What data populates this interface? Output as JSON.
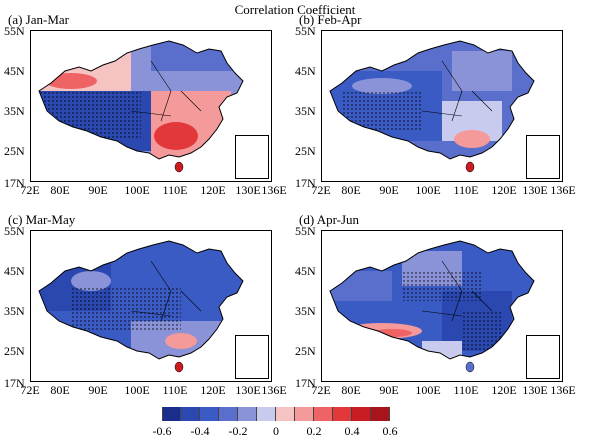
{
  "figure": {
    "title": "Correlation Coefficient"
  },
  "panels": [
    {
      "label": "(a) Jan-Mar"
    },
    {
      "label": "(b) Feb-Apr"
    },
    {
      "label": "(c) Mar-May"
    },
    {
      "label": "(d) Apr-Jun"
    }
  ],
  "axes": {
    "lat_labels": [
      "55N",
      "45N",
      "35N",
      "25N",
      "17N"
    ],
    "lon_labels": [
      "72E",
      "80E",
      "90E",
      "100E",
      "110E",
      "120E",
      "130E",
      "136E"
    ]
  },
  "colorbar": {
    "colors": [
      "#1a2d8c",
      "#2a48b0",
      "#3a5ac4",
      "#5a6fcc",
      "#8a93d8",
      "#c8cbee",
      "#f6c3c3",
      "#f49a9a",
      "#ee6464",
      "#e2383a",
      "#c81c22",
      "#a8141c"
    ],
    "ticks": [
      "-0.6",
      "-0.4",
      "-0.2",
      "0",
      "0.2",
      "0.4",
      "0.6"
    ]
  }
}
